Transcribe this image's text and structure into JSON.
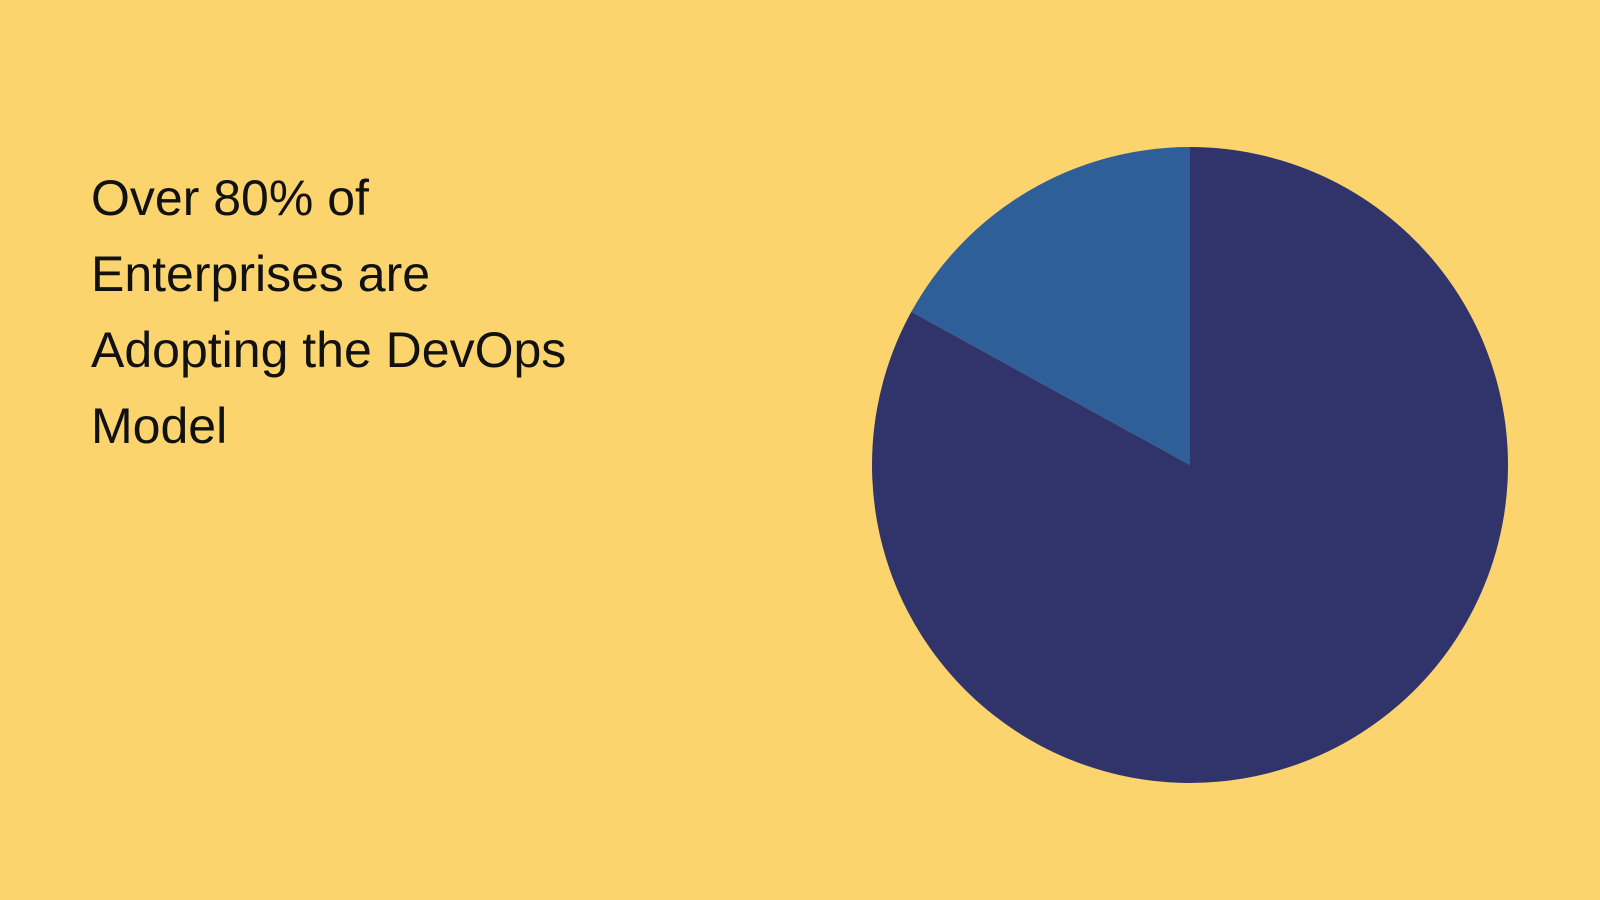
{
  "chart_data": {
    "type": "pie",
    "title": "Over 80% of Enterprises are Adopting the DevOps Model",
    "values": [
      83,
      17
    ],
    "colors": [
      "#30346b",
      "#2e5f98"
    ]
  }
}
